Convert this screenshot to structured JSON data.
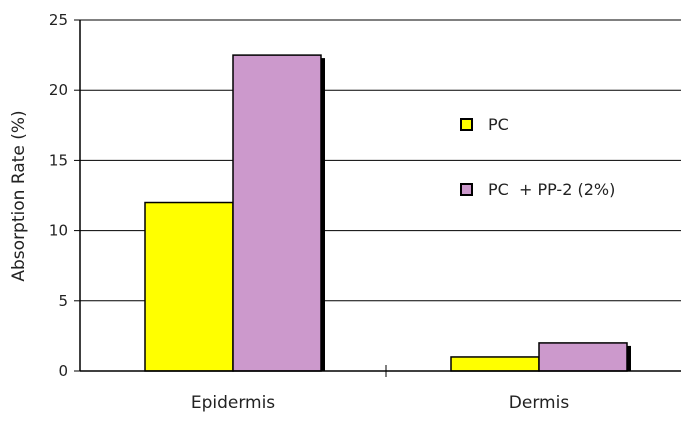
{
  "chart_data": {
    "type": "bar",
    "title": "",
    "xlabel": "",
    "ylabel": "Absorption Rate (%)",
    "ylim": [
      0,
      25
    ],
    "yticks": [
      0,
      5,
      10,
      15,
      20,
      25
    ],
    "categories": [
      "Epidermis",
      "Dermis"
    ],
    "series": [
      {
        "name": "PC",
        "color": "#ffff00",
        "values": [
          12,
          1
        ]
      },
      {
        "name": "PC  + PP-2 (2%)",
        "color": "#cc99cc",
        "values": [
          22.5,
          2
        ]
      }
    ],
    "grid": true,
    "legend_position": "right"
  }
}
